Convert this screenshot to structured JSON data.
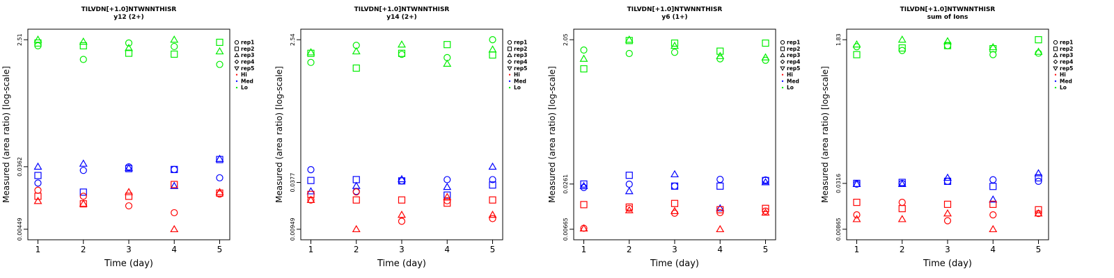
{
  "chart_data": [
    {
      "type": "scatter",
      "title": "TILVDN[+1.0]NTWNNTHISR",
      "subtitle": "y12 (2+)",
      "xlabel": "Time (day)",
      "ylabel": "Measured (area ratio) [log-scale]",
      "log_y": true,
      "x_ticks": [
        "1",
        "2",
        "3",
        "4",
        "5"
      ],
      "y_ticks": [
        "0.00449",
        "0.0362",
        "2.51"
      ],
      "ylim": [
        0.00449,
        2.51
      ],
      "legend_position": "right",
      "series": [
        {
          "name": "Lo",
          "color": "#00ee00",
          "points": [
            [
              1,
              2.51,
              "rep3"
            ],
            [
              1,
              2.25,
              "rep2"
            ],
            [
              1,
              2.05,
              "rep1"
            ],
            [
              2,
              2.35,
              "rep3"
            ],
            [
              2,
              2.05,
              "rep2"
            ],
            [
              2,
              1.3,
              "rep1"
            ],
            [
              3,
              2.25,
              "rep1"
            ],
            [
              3,
              1.9,
              "rep3"
            ],
            [
              3,
              1.6,
              "rep2"
            ],
            [
              4,
              2.51,
              "rep3"
            ],
            [
              4,
              2.0,
              "rep1"
            ],
            [
              4,
              1.55,
              "rep2"
            ],
            [
              5,
              2.3,
              "rep2"
            ],
            [
              5,
              1.7,
              "rep3"
            ],
            [
              5,
              1.1,
              "rep1"
            ]
          ]
        },
        {
          "name": "Med",
          "color": "#0000ff",
          "points": [
            [
              1,
              0.0362,
              "rep3"
            ],
            [
              1,
              0.027,
              "rep2"
            ],
            [
              1,
              0.021,
              "rep1"
            ],
            [
              2,
              0.04,
              "rep3"
            ],
            [
              2,
              0.032,
              "rep1"
            ],
            [
              2,
              0.0155,
              "rep2"
            ],
            [
              3,
              0.036,
              "rep1"
            ],
            [
              3,
              0.034,
              "rep2"
            ],
            [
              3,
              0.0345,
              "rep3"
            ],
            [
              4,
              0.033,
              "rep2"
            ],
            [
              4,
              0.033,
              "rep1"
            ],
            [
              4,
              0.019,
              "rep3"
            ],
            [
              5,
              0.047,
              "rep3"
            ],
            [
              5,
              0.046,
              "rep2"
            ],
            [
              5,
              0.025,
              "rep1"
            ]
          ]
        },
        {
          "name": "Hi",
          "color": "#ff0000",
          "points": [
            [
              1,
              0.0165,
              "rep1"
            ],
            [
              1,
              0.0135,
              "rep2"
            ],
            [
              1,
              0.0115,
              "rep3"
            ],
            [
              2,
              0.0135,
              "rep1"
            ],
            [
              2,
              0.0105,
              "rep2"
            ],
            [
              2,
              0.0105,
              "rep3"
            ],
            [
              3,
              0.0155,
              "rep3"
            ],
            [
              3,
              0.0135,
              "rep2"
            ],
            [
              3,
              0.0098,
              "rep1"
            ],
            [
              4,
              0.02,
              "rep2"
            ],
            [
              4,
              0.0078,
              "rep1"
            ],
            [
              4,
              0.00449,
              "rep3"
            ],
            [
              5,
              0.0155,
              "rep3"
            ],
            [
              5,
              0.015,
              "rep2"
            ],
            [
              5,
              0.0145,
              "rep1"
            ]
          ]
        }
      ]
    },
    {
      "type": "scatter",
      "title": "TILVDN[+1.0]NTWNNTHISR",
      "subtitle": "y14 (2+)",
      "xlabel": "Time (day)",
      "ylabel": "Measured (area ratio) [log-scale]",
      "log_y": true,
      "x_ticks": [
        "1",
        "2",
        "3",
        "4",
        "5"
      ],
      "y_ticks": [
        "0.00949",
        "0.0377",
        "2.54"
      ],
      "ylim": [
        0.00949,
        2.54
      ],
      "legend_position": "right",
      "series": [
        {
          "name": "Lo",
          "color": "#00ee00",
          "points": [
            [
              1,
              1.75,
              "rep3"
            ],
            [
              1,
              1.7,
              "rep2"
            ],
            [
              1,
              1.3,
              "rep1"
            ],
            [
              2,
              2.15,
              "rep1"
            ],
            [
              2,
              1.8,
              "rep3"
            ],
            [
              2,
              1.1,
              "rep2"
            ],
            [
              3,
              2.2,
              "rep3"
            ],
            [
              3,
              1.7,
              "rep2"
            ],
            [
              3,
              1.65,
              "rep1"
            ],
            [
              4,
              2.2,
              "rep2"
            ],
            [
              4,
              1.5,
              "rep1"
            ],
            [
              4,
              1.25,
              "rep3"
            ],
            [
              5,
              2.54,
              "rep1"
            ],
            [
              5,
              1.9,
              "rep3"
            ],
            [
              5,
              1.62,
              "rep2"
            ]
          ]
        },
        {
          "name": "Med",
          "color": "#0000ff",
          "points": [
            [
              1,
              0.055,
              "rep1"
            ],
            [
              1,
              0.04,
              "rep2"
            ],
            [
              1,
              0.029,
              "rep3"
            ],
            [
              2,
              0.041,
              "rep2"
            ],
            [
              2,
              0.034,
              "rep3"
            ],
            [
              2,
              0.029,
              "rep1"
            ],
            [
              3,
              0.0415,
              "rep3"
            ],
            [
              3,
              0.0395,
              "rep2"
            ],
            [
              3,
              0.0395,
              "rep1"
            ],
            [
              4,
              0.041,
              "rep1"
            ],
            [
              4,
              0.033,
              "rep3"
            ],
            [
              4,
              0.026,
              "rep2"
            ],
            [
              5,
              0.06,
              "rep3"
            ],
            [
              5,
              0.041,
              "rep1"
            ],
            [
              5,
              0.035,
              "rep2"
            ]
          ]
        },
        {
          "name": "Hi",
          "color": "#ff0000",
          "points": [
            [
              1,
              0.0265,
              "rep2"
            ],
            [
              1,
              0.0225,
              "rep1"
            ],
            [
              1,
              0.0225,
              "rep3"
            ],
            [
              2,
              0.0285,
              "rep1"
            ],
            [
              2,
              0.0225,
              "rep2"
            ],
            [
              2,
              0.00949,
              "rep3"
            ],
            [
              3,
              0.0225,
              "rep2"
            ],
            [
              3,
              0.0145,
              "rep3"
            ],
            [
              3,
              0.012,
              "rep1"
            ],
            [
              4,
              0.0245,
              "rep3"
            ],
            [
              4,
              0.022,
              "rep1"
            ],
            [
              4,
              0.0205,
              "rep2"
            ],
            [
              5,
              0.0225,
              "rep2"
            ],
            [
              5,
              0.0145,
              "rep3"
            ],
            [
              5,
              0.013,
              "rep1"
            ]
          ]
        }
      ]
    },
    {
      "type": "scatter",
      "title": "TILVDN[+1.0]NTWNNTHISR",
      "subtitle": "y6 (1+)",
      "xlabel": "Time (day)",
      "ylabel": "Measured (area ratio) [log-scale]",
      "log_y": true,
      "x_ticks": [
        "1",
        "2",
        "3",
        "4",
        "5"
      ],
      "y_ticks": [
        "0.00665",
        "0.0261",
        "2.05"
      ],
      "ylim": [
        0.00665,
        2.05
      ],
      "legend_position": "right",
      "series": [
        {
          "name": "Lo",
          "color": "#00ee00",
          "points": [
            [
              1,
              1.5,
              "rep1"
            ],
            [
              1,
              1.15,
              "rep3"
            ],
            [
              1,
              0.85,
              "rep2"
            ],
            [
              2,
              2.05,
              "rep3"
            ],
            [
              2,
              2.0,
              "rep2"
            ],
            [
              2,
              1.35,
              "rep1"
            ],
            [
              3,
              1.85,
              "rep2"
            ],
            [
              3,
              1.7,
              "rep3"
            ],
            [
              3,
              1.4,
              "rep1"
            ],
            [
              4,
              1.45,
              "rep2"
            ],
            [
              4,
              1.25,
              "rep3"
            ],
            [
              4,
              1.15,
              "rep1"
            ],
            [
              5,
              1.85,
              "rep2"
            ],
            [
              5,
              1.2,
              "rep3"
            ],
            [
              5,
              1.1,
              "rep1"
            ]
          ]
        },
        {
          "name": "Med",
          "color": "#0000ff",
          "points": [
            [
              1,
              0.0261,
              "rep2"
            ],
            [
              1,
              0.0245,
              "rep3"
            ],
            [
              1,
              0.0235,
              "rep1"
            ],
            [
              2,
              0.034,
              "rep2"
            ],
            [
              2,
              0.026,
              "rep1"
            ],
            [
              2,
              0.021,
              "rep3"
            ],
            [
              3,
              0.035,
              "rep3"
            ],
            [
              3,
              0.0245,
              "rep1"
            ],
            [
              3,
              0.0245,
              "rep2"
            ],
            [
              4,
              0.03,
              "rep1"
            ],
            [
              4,
              0.0245,
              "rep2"
            ],
            [
              4,
              0.0125,
              "rep3"
            ],
            [
              5,
              0.0295,
              "rep1"
            ],
            [
              5,
              0.029,
              "rep2"
            ],
            [
              5,
              0.0275,
              "rep3"
            ]
          ]
        },
        {
          "name": "Hi",
          "color": "#ff0000",
          "points": [
            [
              1,
              0.014,
              "rep2"
            ],
            [
              1,
              0.00685,
              "rep1"
            ],
            [
              1,
              0.0068,
              "rep3"
            ],
            [
              2,
              0.013,
              "rep2"
            ],
            [
              2,
              0.0125,
              "rep1"
            ],
            [
              2,
              0.0118,
              "rep3"
            ],
            [
              3,
              0.0145,
              "rep2"
            ],
            [
              3,
              0.0115,
              "rep3"
            ],
            [
              3,
              0.0108,
              "rep1"
            ],
            [
              4,
              0.012,
              "rep2"
            ],
            [
              4,
              0.011,
              "rep1"
            ],
            [
              4,
              0.00665,
              "rep3"
            ],
            [
              5,
              0.0125,
              "rep2"
            ],
            [
              5,
              0.0115,
              "rep1"
            ],
            [
              5,
              0.011,
              "rep3"
            ]
          ]
        }
      ]
    },
    {
      "type": "scatter",
      "title": "TILVDN[+1.0]NTWNNTHISR",
      "subtitle": "sum of Ions",
      "xlabel": "Time (day)",
      "ylabel": "Measured (area ratio) [log-scale]",
      "log_y": true,
      "x_ticks": [
        "1",
        "2",
        "3",
        "4",
        "5"
      ],
      "y_ticks": [
        "0.00865",
        "0.0316",
        "1.83"
      ],
      "ylim": [
        0.00865,
        1.83
      ],
      "legend_position": "right",
      "series": [
        {
          "name": "Lo",
          "color": "#00ee00",
          "points": [
            [
              1,
              1.6,
              "rep3"
            ],
            [
              1,
              1.5,
              "rep1"
            ],
            [
              1,
              1.2,
              "rep2"
            ],
            [
              2,
              1.83,
              "rep3"
            ],
            [
              2,
              1.45,
              "rep2"
            ],
            [
              2,
              1.35,
              "rep1"
            ],
            [
              3,
              1.75,
              "rep3"
            ],
            [
              3,
              1.55,
              "rep2"
            ],
            [
              3,
              1.55,
              "rep1"
            ],
            [
              4,
              1.48,
              "rep3"
            ],
            [
              4,
              1.42,
              "rep2"
            ],
            [
              4,
              1.2,
              "rep1"
            ],
            [
              5,
              1.83,
              "rep2"
            ],
            [
              5,
              1.3,
              "rep3"
            ],
            [
              5,
              1.25,
              "rep1"
            ]
          ]
        },
        {
          "name": "Med",
          "color": "#0000ff",
          "points": [
            [
              1,
              0.0316,
              "rep2"
            ],
            [
              1,
              0.031,
              "rep3"
            ],
            [
              1,
              0.031,
              "rep1"
            ],
            [
              2,
              0.0325,
              "rep2"
            ],
            [
              2,
              0.0315,
              "rep1"
            ],
            [
              2,
              0.031,
              "rep3"
            ],
            [
              3,
              0.037,
              "rep3"
            ],
            [
              3,
              0.0335,
              "rep1"
            ],
            [
              3,
              0.0335,
              "rep2"
            ],
            [
              4,
              0.035,
              "rep1"
            ],
            [
              4,
              0.029,
              "rep2"
            ],
            [
              4,
              0.02,
              "rep3"
            ],
            [
              5,
              0.042,
              "rep3"
            ],
            [
              5,
              0.037,
              "rep2"
            ],
            [
              5,
              0.0335,
              "rep1"
            ]
          ]
        },
        {
          "name": "Hi",
          "color": "#ff0000",
          "points": [
            [
              1,
              0.0185,
              "rep2"
            ],
            [
              1,
              0.013,
              "rep1"
            ],
            [
              1,
              0.0115,
              "rep3"
            ],
            [
              2,
              0.0185,
              "rep1"
            ],
            [
              2,
              0.0155,
              "rep2"
            ],
            [
              2,
              0.0115,
              "rep3"
            ],
            [
              3,
              0.0175,
              "rep2"
            ],
            [
              3,
              0.0135,
              "rep3"
            ],
            [
              3,
              0.011,
              "rep1"
            ],
            [
              4,
              0.0175,
              "rep2"
            ],
            [
              4,
              0.013,
              "rep1"
            ],
            [
              4,
              0.00865,
              "rep3"
            ],
            [
              5,
              0.015,
              "rep2"
            ],
            [
              5,
              0.0135,
              "rep1"
            ],
            [
              5,
              0.0135,
              "rep3"
            ]
          ]
        }
      ]
    }
  ],
  "legend": {
    "entries": [
      {
        "label": "rep1",
        "symbol": "circle"
      },
      {
        "label": "rep2",
        "symbol": "square"
      },
      {
        "label": "rep3",
        "symbol": "triangle-up"
      },
      {
        "label": "rep4",
        "symbol": "diamond"
      },
      {
        "label": "rep5",
        "symbol": "triangle-down"
      },
      {
        "label": "Hi",
        "symbol": "dot",
        "color": "#ff0000"
      },
      {
        "label": "Med",
        "symbol": "dot",
        "color": "#0000ff"
      },
      {
        "label": "Lo",
        "symbol": "dot",
        "color": "#00ee00"
      }
    ]
  }
}
